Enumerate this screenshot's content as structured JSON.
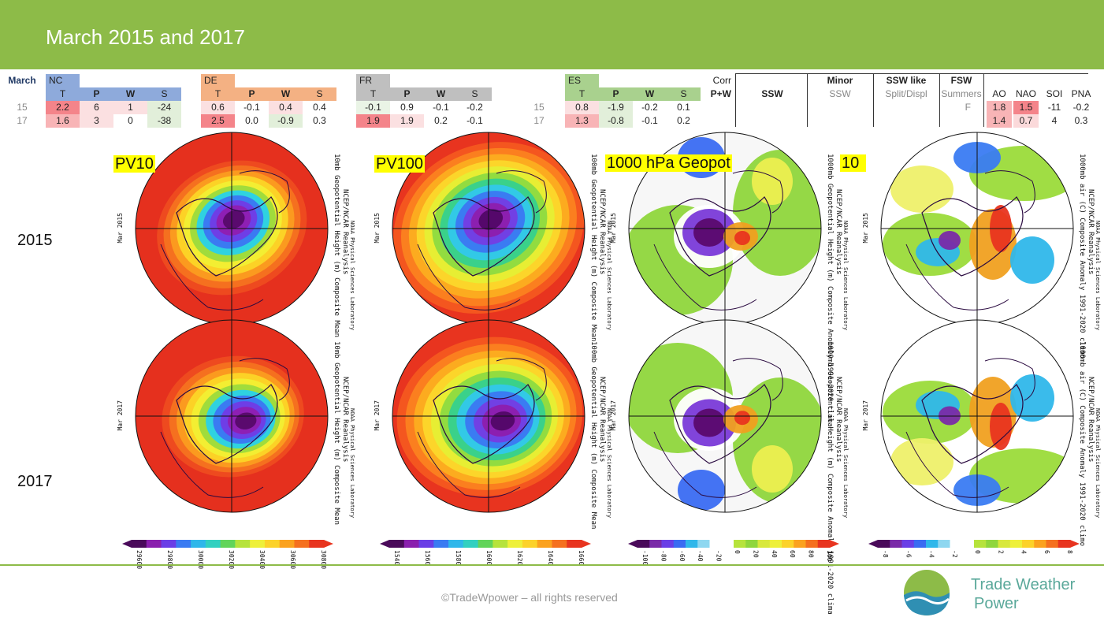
{
  "title": "March 2015 and 2017",
  "table": {
    "month_label": "March",
    "regions": [
      {
        "name": "NC",
        "color": "#8eaadb",
        "cols": [
          "T",
          "P",
          "W",
          "S"
        ],
        "rows": [
          [
            "2.2",
            "6",
            "1",
            "-24"
          ],
          [
            "1.6",
            "3",
            "0",
            "-38"
          ]
        ]
      },
      {
        "name": "DE",
        "color": "#f4b183",
        "cols": [
          "T",
          "P",
          "W",
          "S"
        ],
        "rows": [
          [
            "0.6",
            "-0.1",
            "0.4",
            "0.4"
          ],
          [
            "2.5",
            "0.0",
            "-0.9",
            "0.3"
          ]
        ]
      },
      {
        "name": "FR",
        "color": "#bfbfbf",
        "cols": [
          "T",
          "P",
          "W",
          "S"
        ],
        "rows": [
          [
            "-0.1",
            "0.9",
            "-0.1",
            "-0.2"
          ],
          [
            "1.9",
            "1.9",
            "0.2",
            "-0.1"
          ]
        ]
      },
      {
        "name": "ES",
        "color": "#a9d18e",
        "cols": [
          "T",
          "P",
          "W",
          "S"
        ],
        "rows": [
          [
            "0.8",
            "-1.9",
            "-0.2",
            "0.1"
          ],
          [
            "1.3",
            "-0.8",
            "-0.1",
            "0.2"
          ]
        ]
      }
    ],
    "years": [
      "15",
      "17"
    ],
    "corr_label": "Corr",
    "corr_sub": "P+W",
    "ssw": {
      "label": "SSW"
    },
    "minor": {
      "label": "Minor",
      "sub": "SSW"
    },
    "ssw_like": {
      "label": "SSW like",
      "sub": "Split/Displ"
    },
    "fsw": {
      "label": "FSW",
      "sub": "Summers",
      "values": [
        "F",
        ""
      ]
    },
    "indices": {
      "cols": [
        "AO",
        "NAO",
        "SOI",
        "PNA"
      ],
      "rows": [
        [
          "1.8",
          "1.5",
          "-11",
          "-0.2"
        ],
        [
          "1.4",
          "0.7",
          "4",
          "0.3"
        ]
      ]
    }
  },
  "row_labels": [
    "2015",
    "2017"
  ],
  "map_titles": [
    "PV10",
    "PV100",
    "1000 hPa Geopot",
    "10"
  ],
  "map_side_texts": {
    "pv10": "10mb Geopotential Height (m) Composite Mean",
    "pv100": "100mb Geopotential Height (m) Composite Mean",
    "geopot": "1000mb Geopotential Height (m) Composite Anomaly 1991-2020 clima",
    "air": "1000mb air (C) Composite Anomaly 1991-2020 climo",
    "source1": "NCEP/NCAR Reanalysis",
    "source2": "NOAA Physical Sciences Laboratory"
  },
  "map_dates": [
    "Mar 2015",
    "Mar 2017"
  ],
  "colorbars": [
    {
      "ticks": [
        "29600",
        "29800",
        "30000",
        "30200",
        "30400",
        "30600",
        "30800"
      ]
    },
    {
      "ticks": [
        "1540",
        "1560",
        "1580",
        "1600",
        "1620",
        "1640",
        "1660"
      ]
    },
    {
      "ticks": [
        "-100",
        "-80",
        "-60",
        "-40",
        "-20",
        "0",
        "20",
        "40",
        "60",
        "80",
        "100"
      ]
    },
    {
      "ticks": [
        "-8",
        "-6",
        "-4",
        "-2",
        "0",
        "2",
        "4",
        "6",
        "8"
      ]
    }
  ],
  "footer": {
    "copyright": "©TradeWpower – all rights reserved",
    "logo_line1": "Trade Weather",
    "logo_line2": "Power"
  },
  "colors": {
    "header": "#8dbb48",
    "heat_strong": "#f4848a",
    "heat_light": "#fbd9da",
    "cool_light": "#e2efda"
  }
}
